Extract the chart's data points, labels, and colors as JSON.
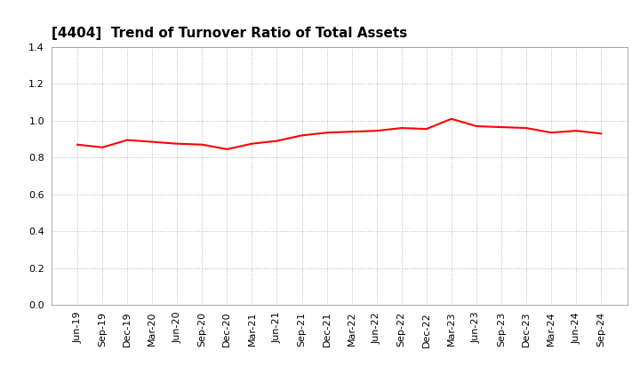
{
  "title": "[4404]  Trend of Turnover Ratio of Total Assets",
  "x_labels": [
    "Jun-19",
    "Sep-19",
    "Dec-19",
    "Mar-20",
    "Jun-20",
    "Sep-20",
    "Dec-20",
    "Mar-21",
    "Jun-21",
    "Sep-21",
    "Dec-21",
    "Mar-22",
    "Jun-22",
    "Sep-22",
    "Dec-22",
    "Mar-23",
    "Jun-23",
    "Sep-23",
    "Dec-23",
    "Mar-24",
    "Jun-24",
    "Sep-24"
  ],
  "values": [
    0.87,
    0.855,
    0.895,
    0.885,
    0.875,
    0.87,
    0.845,
    0.875,
    0.89,
    0.92,
    0.935,
    0.94,
    0.945,
    0.96,
    0.955,
    1.01,
    0.97,
    0.965,
    0.96,
    0.935,
    0.945,
    0.93
  ],
  "line_color": "#ff0000",
  "line_width": 1.5,
  "ylim": [
    0.0,
    1.4
  ],
  "yticks": [
    0.0,
    0.2,
    0.4,
    0.6,
    0.8,
    1.0,
    1.2,
    1.4
  ],
  "background_color": "#ffffff",
  "grid_color": "#aaaaaa",
  "title_fontsize": 11,
  "tick_fontsize": 8
}
